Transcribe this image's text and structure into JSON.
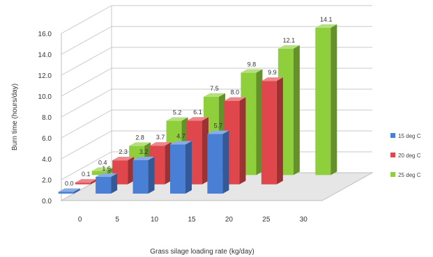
{
  "chart_data": {
    "type": "bar",
    "style": "3d-clustered",
    "title": "",
    "xlabel": "Grass silage loading rate (kg/day)",
    "ylabel": "Burn time (hours/day)",
    "categories": [
      "0",
      "5",
      "10",
      "15",
      "20",
      "25",
      "30"
    ],
    "series": [
      {
        "name": "15 deg C",
        "color": "#4a7fd6",
        "values": [
          0.0,
          1.6,
          3.2,
          4.7,
          5.7,
          null,
          null
        ]
      },
      {
        "name": "20 deg C",
        "color": "#e0474c",
        "values": [
          0.1,
          2.3,
          3.7,
          6.1,
          8.0,
          9.9,
          null
        ]
      },
      {
        "name": "25 deg C",
        "color": "#8fcf3c",
        "values": [
          0.4,
          2.8,
          5.2,
          7.5,
          9.8,
          12.1,
          14.1
        ]
      }
    ],
    "data_labels": [
      [
        "0.0",
        "1.6",
        "3.2",
        "4.7",
        "5.7",
        null,
        null
      ],
      [
        "0.1",
        "2.3",
        "3.7",
        "6.1",
        "8.0",
        "9.9",
        null
      ],
      [
        "0.4",
        "2.8",
        "5.2",
        "7.5",
        "9.8",
        "12.1",
        "14.1"
      ]
    ],
    "y_ticks": [
      "0.0",
      "2.0",
      "4.0",
      "6.0",
      "8.0",
      "10.0",
      "12.0",
      "14.0",
      "16.0"
    ],
    "ylim": [
      0,
      16
    ],
    "grid": true,
    "legend_position": "right"
  }
}
